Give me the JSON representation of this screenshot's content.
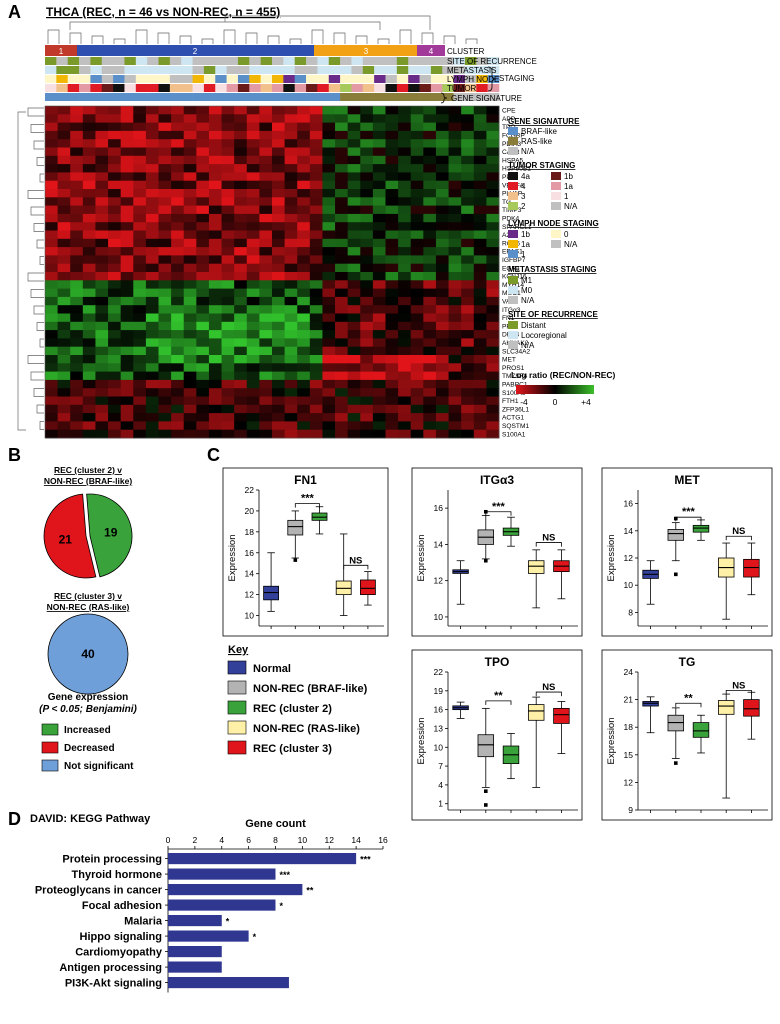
{
  "panels": {
    "A": {
      "label": "A",
      "title": "THCA (REC, n = 46 vs NON-REC, n = 455)",
      "clusters": [
        "1",
        "2",
        "3",
        "4"
      ],
      "row_tracks": [
        "CLUSTER",
        "SITE OF RECURRENCE",
        "METASTASIS",
        "LYMPH NODE",
        "TUMOR",
        "GENE SIGNATURE"
      ],
      "staging_label": "STAGING",
      "genes": [
        "CPE",
        "APP",
        "TPO",
        "FCGBP",
        "PDIA3",
        "CALR",
        "HSPA5",
        "HSP90B1",
        "PPIB",
        "VEGFA",
        "PLVAP",
        "TG",
        "TIMP3",
        "PDK4",
        "SPARCL1",
        "A2M",
        "RGS5",
        "EPAS1",
        "IGFBP7",
        "EGR1",
        "KCNJ16",
        "MYH14",
        "MUC1",
        "VAT1",
        "ITGα3",
        "FN1",
        "PPL",
        "DPP4",
        "AHNAK2",
        "SLC34A2",
        "MET",
        "PROS1",
        "TM7SF4",
        "PABPC1",
        "S100A6",
        "FTH1",
        "ZFP36L1",
        "ACTG1",
        "SQSTM1",
        "S100A1"
      ],
      "legend": {
        "gene_signature": {
          "title": "GENE SIGNATURE",
          "items": [
            {
              "label": "BRAF-like",
              "color": "#5b8fc9"
            },
            {
              "label": "RAS-like",
              "color": "#8a7d3a"
            },
            {
              "label": "N/A",
              "color": "#c0c0c0"
            }
          ]
        },
        "tumor_staging": {
          "title": "TUMOR STAGING",
          "items": [
            {
              "label": "4a",
              "color": "#111111"
            },
            {
              "label": "1b",
              "color": "#6b1a1a"
            },
            {
              "label": "4",
              "color": "#e01b24"
            },
            {
              "label": "1a",
              "color": "#e49aa4"
            },
            {
              "label": "3",
              "color": "#f2c08a"
            },
            {
              "label": "1",
              "color": "#f7dfe2"
            },
            {
              "label": "2",
              "color": "#a7c95b"
            },
            {
              "label": "N/A",
              "color": "#c0c0c0"
            }
          ]
        },
        "lymph_node_staging": {
          "title": "LYMPH NODE STAGING",
          "items": [
            {
              "label": "1b",
              "color": "#6a2a8a"
            },
            {
              "label": "0",
              "color": "#fff6c8"
            },
            {
              "label": "1a",
              "color": "#f2b705"
            },
            {
              "label": "N/A",
              "color": "#c0c0c0"
            },
            {
              "label": "1",
              "color": "#5b8fc9"
            }
          ]
        },
        "metastasis_staging": {
          "title": "METASTASIS STAGING",
          "items": [
            {
              "label": "M1",
              "color": "#7a9a2a"
            },
            {
              "label": "M0",
              "color": "#cde6f2"
            },
            {
              "label": "N/A",
              "color": "#c0c0c0"
            }
          ]
        },
        "site_of_recurrence": {
          "title": "SITE OF RECURRENCE",
          "items": [
            {
              "label": "Distant",
              "color": "#7a9a2a"
            },
            {
              "label": "Locoregional",
              "color": "#cde6f2"
            },
            {
              "label": "N/A",
              "color": "#c0c0c0"
            }
          ]
        },
        "log_ratio": {
          "title": "Log ratio (REC/NON-REC)",
          "ticks": [
            "-4",
            "0",
            "+4"
          ]
        }
      }
    },
    "B": {
      "label": "B",
      "pie1_title_line1": "REC (cluster 2) v",
      "pie1_title_line2": "NON-REC (BRAF-like)",
      "pie2_title_line1": "REC (cluster 3) v",
      "pie2_title_line2": "NON-REC (RAS-like)",
      "caption_line1": "Gene expression",
      "caption_line2": "(P < 0.05; Benjamini)",
      "legend": [
        {
          "label": "Increased",
          "color": "#3aa23a"
        },
        {
          "label": "Decreased",
          "color": "#e0151b"
        },
        {
          "label": "Not significant",
          "color": "#6f9fd8"
        }
      ]
    },
    "C": {
      "label": "C",
      "ylabel": "Expression",
      "key_title": "Key",
      "key": [
        {
          "label": "Normal",
          "color": "#33409a"
        },
        {
          "label": "NON-REC (BRAF-like)",
          "color": "#b3b3b3"
        },
        {
          "label": "REC (cluster 2)",
          "color": "#3aa23a"
        },
        {
          "label": "NON-REC (RAS-like)",
          "color": "#fff0a8"
        },
        {
          "label": "REC (cluster 3)",
          "color": "#e0151b"
        }
      ]
    },
    "D": {
      "label": "D",
      "title": "DAVID: KEGG Pathway"
    }
  },
  "chart_data": [
    {
      "type": "pie",
      "id": "pie-cluster2",
      "labels": [
        "Increased",
        "Decreased"
      ],
      "values": [
        19,
        21
      ],
      "colors": [
        "#3aa23a",
        "#e0151b"
      ]
    },
    {
      "type": "pie",
      "id": "pie-cluster3",
      "labels": [
        "Not significant"
      ],
      "values": [
        40
      ],
      "colors": [
        "#6f9fd8"
      ]
    },
    {
      "type": "box",
      "title": "FN1",
      "ylabel": "Expression",
      "ylim": [
        9,
        22
      ],
      "yticks": [
        10,
        12,
        14,
        16,
        18,
        20,
        22
      ],
      "groups": [
        {
          "name": "Normal",
          "color": "#33409a",
          "min": 10.4,
          "q1": 11.5,
          "median": 12.2,
          "q3": 12.8,
          "max": 16.0,
          "outliers": []
        },
        {
          "name": "NON-REC (BRAF-like)",
          "color": "#b3b3b3",
          "min": 15.5,
          "q1": 17.7,
          "median": 18.5,
          "q3": 19.1,
          "max": 20.0,
          "outliers": [
            15.3
          ]
        },
        {
          "name": "REC (cluster 2)",
          "color": "#3aa23a",
          "min": 17.8,
          "q1": 19.1,
          "median": 19.4,
          "q3": 19.8,
          "max": 20.4,
          "outliers": []
        },
        {
          "name": "NON-REC (RAS-like)",
          "color": "#fff0a8",
          "min": 10.0,
          "q1": 12.0,
          "median": 12.6,
          "q3": 13.3,
          "max": 17.8,
          "outliers": []
        },
        {
          "name": "REC (cluster 3)",
          "color": "#e0151b",
          "min": 11.0,
          "q1": 12.0,
          "median": 12.6,
          "q3": 13.4,
          "max": 14.2,
          "outliers": []
        }
      ],
      "brackets": [
        {
          "from": 1,
          "to": 2,
          "label": "***",
          "y": 20.7
        },
        {
          "from": 3,
          "to": 4,
          "label": "NS",
          "y": 14.8
        }
      ]
    },
    {
      "type": "box",
      "title": "ITGα3",
      "ylabel": "Expression",
      "ylim": [
        9.5,
        17
      ],
      "yticks": [
        10,
        12,
        14,
        16
      ],
      "groups": [
        {
          "name": "Normal",
          "color": "#33409a",
          "min": 10.7,
          "q1": 12.4,
          "median": 12.5,
          "q3": 12.6,
          "max": 13.1,
          "outliers": []
        },
        {
          "name": "NON-REC (BRAF-like)",
          "color": "#b3b3b3",
          "min": 13.2,
          "q1": 14.0,
          "median": 14.4,
          "q3": 14.8,
          "max": 15.6,
          "outliers": [
            13.1,
            15.8
          ]
        },
        {
          "name": "REC (cluster 2)",
          "color": "#3aa23a",
          "min": 13.9,
          "q1": 14.5,
          "median": 14.7,
          "q3": 14.9,
          "max": 15.5,
          "outliers": []
        },
        {
          "name": "NON-REC (RAS-like)",
          "color": "#fff0a8",
          "min": 10.5,
          "q1": 12.4,
          "median": 12.8,
          "q3": 13.1,
          "max": 13.7,
          "outliers": []
        },
        {
          "name": "REC (cluster 3)",
          "color": "#e0151b",
          "min": 11.0,
          "q1": 12.5,
          "median": 12.8,
          "q3": 13.1,
          "max": 13.7,
          "outliers": []
        }
      ],
      "brackets": [
        {
          "from": 1,
          "to": 2,
          "label": "***",
          "y": 15.8
        },
        {
          "from": 3,
          "to": 4,
          "label": "NS",
          "y": 14.1
        }
      ]
    },
    {
      "type": "box",
      "title": "MET",
      "ylabel": "Expression",
      "ylim": [
        7,
        17
      ],
      "yticks": [
        8,
        10,
        12,
        14,
        16
      ],
      "groups": [
        {
          "name": "Normal",
          "color": "#33409a",
          "min": 8.6,
          "q1": 10.5,
          "median": 10.8,
          "q3": 11.1,
          "max": 11.8,
          "outliers": []
        },
        {
          "name": "NON-REC (BRAF-like)",
          "color": "#b3b3b3",
          "min": 11.8,
          "q1": 13.3,
          "median": 13.8,
          "q3": 14.1,
          "max": 14.6,
          "outliers": [
            10.8,
            14.9
          ]
        },
        {
          "name": "REC (cluster 2)",
          "color": "#3aa23a",
          "min": 13.3,
          "q1": 13.9,
          "median": 14.2,
          "q3": 14.4,
          "max": 14.8,
          "outliers": []
        },
        {
          "name": "NON-REC (RAS-like)",
          "color": "#fff0a8",
          "min": 7.5,
          "q1": 10.6,
          "median": 11.3,
          "q3": 12.0,
          "max": 13.1,
          "outliers": []
        },
        {
          "name": "REC (cluster 3)",
          "color": "#e0151b",
          "min": 9.3,
          "q1": 10.6,
          "median": 11.3,
          "q3": 11.9,
          "max": 13.1,
          "outliers": []
        }
      ],
      "brackets": [
        {
          "from": 1,
          "to": 2,
          "label": "***",
          "y": 15.0
        },
        {
          "from": 3,
          "to": 4,
          "label": "NS",
          "y": 13.6
        }
      ]
    },
    {
      "type": "box",
      "title": "TPO",
      "ylabel": "Expression",
      "ylim": [
        0,
        22
      ],
      "yticks": [
        1,
        4,
        7,
        10,
        13,
        16,
        19,
        22
      ],
      "groups": [
        {
          "name": "Normal",
          "color": "#33409a",
          "min": 14.6,
          "q1": 16.0,
          "median": 16.3,
          "q3": 16.6,
          "max": 17.2,
          "outliers": []
        },
        {
          "name": "NON-REC (BRAF-like)",
          "color": "#b3b3b3",
          "min": 3.6,
          "q1": 8.5,
          "median": 10.4,
          "q3": 12.0,
          "max": 16.2,
          "outliers": [
            0.8,
            3.0
          ]
        },
        {
          "name": "REC (cluster 2)",
          "color": "#3aa23a",
          "min": 5.0,
          "q1": 7.4,
          "median": 8.8,
          "q3": 10.2,
          "max": 12.2,
          "outliers": []
        },
        {
          "name": "NON-REC (RAS-like)",
          "color": "#fff0a8",
          "min": 3.6,
          "q1": 14.3,
          "median": 15.8,
          "q3": 16.8,
          "max": 18.0,
          "outliers": []
        },
        {
          "name": "REC (cluster 3)",
          "color": "#e0151b",
          "min": 9.0,
          "q1": 13.8,
          "median": 15.2,
          "q3": 16.2,
          "max": 17.3,
          "outliers": []
        }
      ],
      "brackets": [
        {
          "from": 1,
          "to": 2,
          "label": "**",
          "y": 17.4
        },
        {
          "from": 3,
          "to": 4,
          "label": "NS",
          "y": 18.8
        }
      ]
    },
    {
      "type": "box",
      "title": "TG",
      "ylabel": "Expression",
      "ylim": [
        9,
        24
      ],
      "yticks": [
        9,
        12,
        15,
        18,
        21,
        24
      ],
      "groups": [
        {
          "name": "Normal",
          "color": "#33409a",
          "min": 17.4,
          "q1": 20.3,
          "median": 20.6,
          "q3": 20.8,
          "max": 21.3,
          "outliers": []
        },
        {
          "name": "NON-REC (BRAF-like)",
          "color": "#b3b3b3",
          "min": 14.6,
          "q1": 17.6,
          "median": 18.5,
          "q3": 19.3,
          "max": 20.1,
          "outliers": [
            14.1
          ]
        },
        {
          "name": "REC (cluster 2)",
          "color": "#3aa23a",
          "min": 15.2,
          "q1": 16.9,
          "median": 17.6,
          "q3": 18.5,
          "max": 19.3,
          "outliers": []
        },
        {
          "name": "NON-REC (RAS-like)",
          "color": "#fff0a8",
          "min": 10.3,
          "q1": 19.4,
          "median": 20.3,
          "q3": 20.9,
          "max": 21.6,
          "outliers": []
        },
        {
          "name": "REC (cluster 3)",
          "color": "#e0151b",
          "min": 16.7,
          "q1": 19.2,
          "median": 20.0,
          "q3": 21.0,
          "max": 21.8,
          "outliers": []
        }
      ],
      "brackets": [
        {
          "from": 1,
          "to": 2,
          "label": "**",
          "y": 20.6
        },
        {
          "from": 3,
          "to": 4,
          "label": "NS",
          "y": 22.0
        }
      ]
    },
    {
      "type": "bar",
      "orientation": "horizontal",
      "title": "DAVID: KEGG Pathway",
      "xlabel": "Gene count",
      "xlim": [
        0,
        16
      ],
      "xticks": [
        0,
        2,
        4,
        6,
        8,
        10,
        12,
        14,
        16
      ],
      "color": "#2f3790",
      "categories": [
        "Protein processing",
        "Thyroid hormone",
        "Proteoglycans in cancer",
        "Focal adhesion",
        "Malaria",
        "Hippo signaling",
        "Cardiomyopathy",
        "Antigen processing",
        "PI3K-Akt signaling"
      ],
      "values": [
        14,
        8,
        10,
        8,
        4,
        6,
        4,
        4,
        9
      ],
      "significance": [
        "***",
        "***",
        "**",
        "*",
        "*",
        "*",
        "",
        "",
        ""
      ]
    }
  ]
}
